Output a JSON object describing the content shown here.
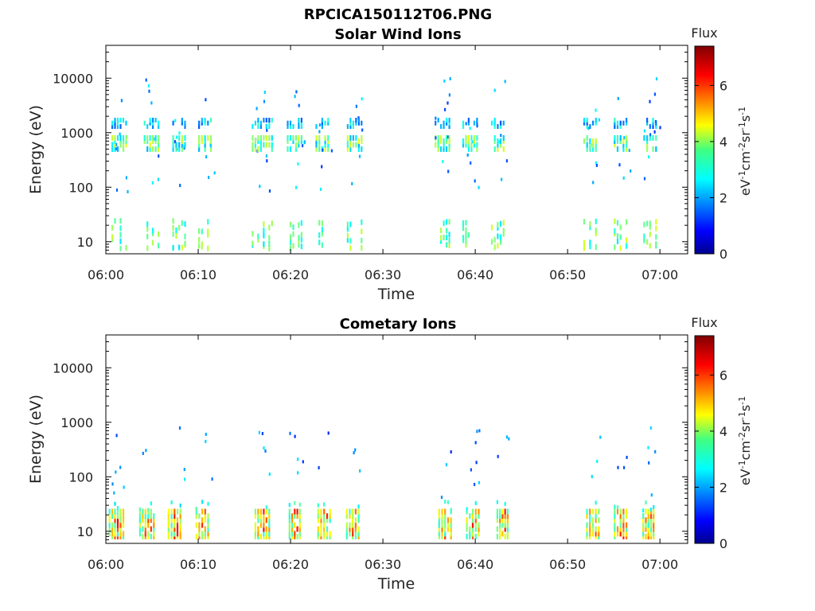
{
  "figure_title": "RPCICA150112T06.PNG",
  "colorbar": {
    "title": "Flux",
    "unit": "eV-1cm-2sr-1s-1",
    "range": [
      0,
      7.4
    ],
    "ticks": [
      0,
      2,
      4,
      6
    ],
    "colormap": "jet"
  },
  "chart_data": [
    {
      "type": "heatmap",
      "title": "Solar Wind Ions",
      "xlabel": "Time",
      "ylabel": "Energy (eV)",
      "x_ticks": [
        "06:00",
        "06:10",
        "06:20",
        "06:30",
        "06:40",
        "06:50",
        "07:00"
      ],
      "xlim_min": [
        0,
        63
      ],
      "y_scale": "log",
      "y_ticks": [
        10,
        100,
        1000,
        10000
      ],
      "ylim": [
        6,
        40000
      ],
      "bursts": [
        {
          "t": 1.5,
          "w": 1.8,
          "pattern": "sw"
        },
        {
          "t": 5.0,
          "w": 1.8,
          "pattern": "sw"
        },
        {
          "t": 8.0,
          "w": 1.6,
          "pattern": "sw"
        },
        {
          "t": 10.8,
          "w": 1.6,
          "pattern": "sw"
        },
        {
          "t": 17.0,
          "w": 2.4,
          "pattern": "sw"
        },
        {
          "t": 20.5,
          "w": 1.8,
          "pattern": "sw"
        },
        {
          "t": 23.5,
          "w": 1.6,
          "pattern": "sw"
        },
        {
          "t": 27.0,
          "w": 1.8,
          "pattern": "sw"
        },
        {
          "t": 36.5,
          "w": 1.8,
          "pattern": "sw"
        },
        {
          "t": 39.5,
          "w": 1.8,
          "pattern": "sw"
        },
        {
          "t": 42.5,
          "w": 1.6,
          "pattern": "sw"
        },
        {
          "t": 52.5,
          "w": 1.6,
          "pattern": "sw"
        },
        {
          "t": 55.8,
          "w": 1.6,
          "pattern": "sw"
        },
        {
          "t": 59.0,
          "w": 1.6,
          "pattern": "sw"
        }
      ]
    },
    {
      "type": "heatmap",
      "title": "Cometary Ions",
      "xlabel": "Time",
      "ylabel": "Energy (eV)",
      "x_ticks": [
        "06:00",
        "06:10",
        "06:20",
        "06:30",
        "06:40",
        "06:50",
        "07:00"
      ],
      "xlim_min": [
        0,
        63
      ],
      "y_scale": "log",
      "y_ticks": [
        10,
        100,
        1000,
        10000
      ],
      "ylim": [
        6,
        40000
      ],
      "bursts": [
        {
          "t": 1.2,
          "w": 1.8,
          "pattern": "com"
        },
        {
          "t": 4.5,
          "w": 1.8,
          "pattern": "com"
        },
        {
          "t": 7.5,
          "w": 1.6,
          "pattern": "com"
        },
        {
          "t": 10.5,
          "w": 1.6,
          "pattern": "com"
        },
        {
          "t": 17.0,
          "w": 1.8,
          "pattern": "com"
        },
        {
          "t": 20.5,
          "w": 1.4,
          "pattern": "com"
        },
        {
          "t": 23.7,
          "w": 1.6,
          "pattern": "com"
        },
        {
          "t": 26.8,
          "w": 1.6,
          "pattern": "com"
        },
        {
          "t": 36.8,
          "w": 1.6,
          "pattern": "com"
        },
        {
          "t": 39.8,
          "w": 1.6,
          "pattern": "com"
        },
        {
          "t": 43.0,
          "w": 1.4,
          "pattern": "com"
        },
        {
          "t": 52.8,
          "w": 1.6,
          "pattern": "com"
        },
        {
          "t": 55.8,
          "w": 1.6,
          "pattern": "com"
        },
        {
          "t": 58.8,
          "w": 1.4,
          "pattern": "com"
        }
      ]
    }
  ]
}
